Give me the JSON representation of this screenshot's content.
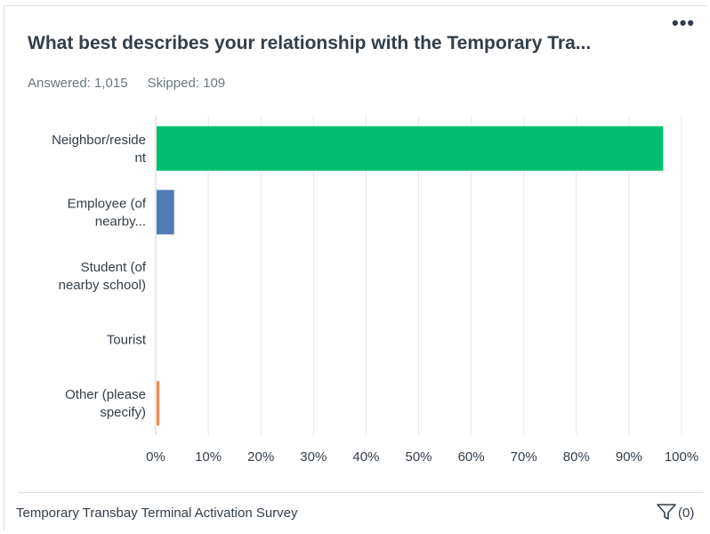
{
  "card": {
    "title": "What best describes your relationship with the Temporary Tra...",
    "answered": "Answered: 1,015",
    "skipped": "Skipped: 109",
    "footer_title": "Temporary Transbay Terminal Activation Survey",
    "filter_count": "(0)",
    "more_icon": "ellipsis-icon",
    "filter_icon": "filter-icon"
  },
  "chart_data": {
    "type": "bar",
    "orientation": "horizontal",
    "categories": [
      [
        "Neighbor/reside",
        "nt"
      ],
      [
        "Employee (of",
        "nearby..."
      ],
      [
        "Student (of",
        "nearby school)"
      ],
      [
        "Tourist"
      ],
      [
        "Other (please",
        "specify)"
      ]
    ],
    "values": [
      96.5,
      3.5,
      0,
      0,
      0.7
    ],
    "colors": [
      "#00bf6f",
      "#507cb6",
      "#6bc8cd",
      "#f9be00",
      "#f6874e"
    ],
    "xlim": [
      0,
      100
    ],
    "ticks": [
      0,
      10,
      20,
      30,
      40,
      50,
      60,
      70,
      80,
      90,
      100
    ],
    "tick_labels": [
      "0%",
      "10%",
      "20%",
      "30%",
      "40%",
      "50%",
      "60%",
      "70%",
      "80%",
      "90%",
      "100%"
    ],
    "grid": true,
    "xlabel": "",
    "ylabel": "",
    "title": ""
  }
}
